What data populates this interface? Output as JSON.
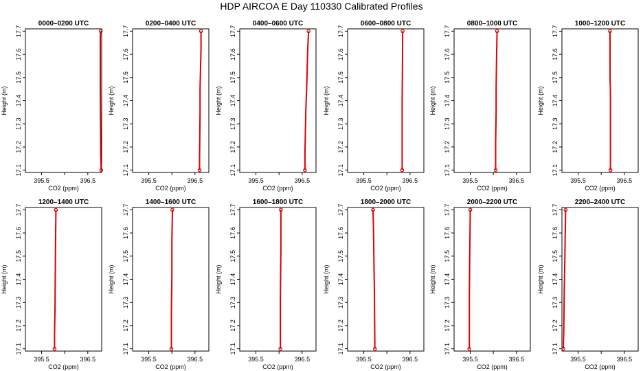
{
  "title": "HDP AIRCOA E  Day 110330  Calibrated Profiles",
  "colors": {
    "profile": "#dd0000",
    "axis": "#000000",
    "background": "#ffffff"
  },
  "chart_data": [
    {
      "type": "line",
      "title": "0000–0200 UTC",
      "xlabel": "CO2 (ppm)",
      "ylabel": "Height (m)",
      "xlim": [
        395.15,
        396.8
      ],
      "ylim": [
        17.09,
        17.71
      ],
      "xticks": [
        "395.5",
        "396.5"
      ],
      "yticks": [
        "17.1",
        "17.2",
        "17.3",
        "17.4",
        "17.5",
        "17.6",
        "17.7"
      ],
      "grid": false,
      "series": [
        {
          "x": [
            396.79,
            396.78,
            396.77,
            396.77,
            396.77,
            396.78
          ],
          "y": [
            17.1,
            17.16,
            17.46,
            17.56,
            17.68,
            17.7
          ]
        }
      ]
    },
    {
      "type": "line",
      "title": "0200–0400 UTC",
      "xlabel": "CO2 (ppm)",
      "ylabel": "Height (m)",
      "xlim": [
        395.15,
        396.8
      ],
      "ylim": [
        17.09,
        17.71
      ],
      "xticks": [
        "395.5",
        "396.5"
      ],
      "yticks": [
        "17.1",
        "17.2",
        "17.3",
        "17.4",
        "17.5",
        "17.6",
        "17.7"
      ],
      "grid": false,
      "series": [
        {
          "x": [
            396.6,
            396.6,
            396.61,
            396.61,
            396.62,
            396.63,
            396.63
          ],
          "y": [
            17.1,
            17.15,
            17.35,
            17.45,
            17.54,
            17.62,
            17.7
          ]
        }
      ]
    },
    {
      "type": "line",
      "title": "0400–0600 UTC",
      "xlabel": "CO2 (ppm)",
      "ylabel": "Height (m)",
      "xlim": [
        395.15,
        396.8
      ],
      "ylim": [
        17.09,
        17.71
      ],
      "xticks": [
        "395.5",
        "396.5"
      ],
      "yticks": [
        "17.1",
        "17.2",
        "17.3",
        "17.4",
        "17.5",
        "17.6",
        "17.7"
      ],
      "grid": false,
      "series": [
        {
          "x": [
            396.56,
            396.56,
            396.57,
            396.58,
            396.6,
            396.61,
            396.62,
            396.64
          ],
          "y": [
            17.1,
            17.17,
            17.26,
            17.36,
            17.46,
            17.54,
            17.62,
            17.7
          ]
        }
      ]
    },
    {
      "type": "line",
      "title": "0600–0800 UTC",
      "xlabel": "CO2 (ppm)",
      "ylabel": "Height (m)",
      "xlim": [
        395.15,
        396.8
      ],
      "ylim": [
        17.09,
        17.71
      ],
      "xticks": [
        "395.5",
        "396.5"
      ],
      "yticks": [
        "17.1",
        "17.2",
        "17.3",
        "17.4",
        "17.5",
        "17.6",
        "17.7"
      ],
      "grid": false,
      "series": [
        {
          "x": [
            396.33,
            396.33,
            396.34,
            396.34,
            396.34
          ],
          "y": [
            17.1,
            17.4,
            17.65,
            17.68,
            17.7
          ]
        }
      ]
    },
    {
      "type": "line",
      "title": "0800–1000 UTC",
      "xlabel": "CO2 (ppm)",
      "ylabel": "Height (m)",
      "xlim": [
        395.15,
        396.8
      ],
      "ylim": [
        17.09,
        17.71
      ],
      "xticks": [
        "395.5",
        "396.5"
      ],
      "yticks": [
        "17.1",
        "17.2",
        "17.3",
        "17.4",
        "17.5",
        "17.6",
        "17.7"
      ],
      "grid": false,
      "series": [
        {
          "x": [
            396.05,
            396.05,
            396.06,
            396.06,
            396.07,
            396.08
          ],
          "y": [
            17.1,
            17.22,
            17.35,
            17.45,
            17.6,
            17.7
          ]
        }
      ]
    },
    {
      "type": "line",
      "title": "1000–1200 UTC",
      "xlabel": "CO2 (ppm)",
      "ylabel": "Height (m)",
      "xlim": [
        395.15,
        396.8
      ],
      "ylim": [
        17.09,
        17.71
      ],
      "xticks": [
        "395.5",
        "396.5"
      ],
      "yticks": [
        "17.1",
        "17.2",
        "17.3",
        "17.4",
        "17.5",
        "17.6",
        "17.7"
      ],
      "grid": false,
      "series": [
        {
          "x": [
            396.2,
            396.2,
            396.19,
            396.19
          ],
          "y": [
            17.1,
            17.44,
            17.5,
            17.7
          ]
        }
      ]
    },
    {
      "type": "line",
      "title": "1200–1400 UTC",
      "xlabel": "CO2 (ppm)",
      "ylabel": "Height (m)",
      "xlim": [
        395.15,
        396.8
      ],
      "ylim": [
        17.09,
        17.71
      ],
      "xticks": [
        "395.5",
        "396.5"
      ],
      "yticks": [
        "17.1",
        "17.2",
        "17.3",
        "17.4",
        "17.5",
        "17.6",
        "17.7"
      ],
      "grid": false,
      "series": [
        {
          "x": [
            395.78,
            395.78,
            395.79,
            395.8,
            395.81
          ],
          "y": [
            17.1,
            17.16,
            17.28,
            17.51,
            17.7
          ]
        }
      ]
    },
    {
      "type": "line",
      "title": "1400–1600 UTC",
      "xlabel": "CO2 (ppm)",
      "ylabel": "Height (m)",
      "xlim": [
        395.15,
        396.8
      ],
      "ylim": [
        17.09,
        17.71
      ],
      "xticks": [
        "395.5",
        "396.5"
      ],
      "yticks": [
        "17.1",
        "17.2",
        "17.3",
        "17.4",
        "17.5",
        "17.6",
        "17.7"
      ],
      "grid": false,
      "series": [
        {
          "x": [
            395.99,
            395.99,
            396.0,
            396.0,
            396.01,
            396.01
          ],
          "y": [
            17.1,
            17.25,
            17.42,
            17.56,
            17.68,
            17.7
          ]
        }
      ]
    },
    {
      "type": "line",
      "title": "1600–1800 UTC",
      "xlabel": "CO2 (ppm)",
      "ylabel": "Height (m)",
      "xlim": [
        395.15,
        396.8
      ],
      "ylim": [
        17.09,
        17.71
      ],
      "xticks": [
        "395.5",
        "396.5"
      ],
      "yticks": [
        "17.1",
        "17.2",
        "17.3",
        "17.4",
        "17.5",
        "17.6",
        "17.7"
      ],
      "grid": false,
      "series": [
        {
          "x": [
            396.03,
            396.03,
            396.04,
            396.04,
            396.04
          ],
          "y": [
            17.1,
            17.33,
            17.53,
            17.68,
            17.7
          ]
        }
      ]
    },
    {
      "type": "line",
      "title": "1800–2000 UTC",
      "xlabel": "CO2 (ppm)",
      "ylabel": "Height (m)",
      "xlim": [
        395.15,
        396.8
      ],
      "ylim": [
        17.09,
        17.71
      ],
      "xticks": [
        "395.5",
        "396.5"
      ],
      "yticks": [
        "17.1",
        "17.2",
        "17.3",
        "17.4",
        "17.5",
        "17.6",
        "17.7"
      ],
      "grid": false,
      "series": [
        {
          "x": [
            395.74,
            395.73,
            395.72,
            395.71,
            395.7
          ],
          "y": [
            17.1,
            17.36,
            17.48,
            17.62,
            17.7
          ]
        }
      ]
    },
    {
      "type": "line",
      "title": "2000–2200 UTC",
      "xlabel": "CO2 (ppm)",
      "ylabel": "Height (m)",
      "xlim": [
        395.15,
        396.8
      ],
      "ylim": [
        17.09,
        17.71
      ],
      "xticks": [
        "395.5",
        "396.5"
      ],
      "yticks": [
        "17.1",
        "17.2",
        "17.3",
        "17.4",
        "17.5",
        "17.6",
        "17.7"
      ],
      "grid": false,
      "series": [
        {
          "x": [
            395.48,
            395.48,
            395.49,
            395.5,
            395.5
          ],
          "y": [
            17.1,
            17.31,
            17.54,
            17.68,
            17.7
          ]
        }
      ]
    },
    {
      "type": "line",
      "title": "2200–2400 UTC",
      "xlabel": "CO2 (ppm)",
      "ylabel": "Height (m)",
      "xlim": [
        395.15,
        396.8
      ],
      "ylim": [
        17.09,
        17.71
      ],
      "xticks": [
        "395.5",
        "396.5"
      ],
      "yticks": [
        "17.1",
        "17.2",
        "17.3",
        "17.4",
        "17.5",
        "17.6",
        "17.7"
      ],
      "grid": false,
      "series": [
        {
          "x": [
            395.18,
            395.19,
            395.2,
            395.21,
            395.22,
            395.23
          ],
          "y": [
            17.1,
            17.18,
            17.36,
            17.45,
            17.58,
            17.7
          ]
        }
      ]
    }
  ]
}
